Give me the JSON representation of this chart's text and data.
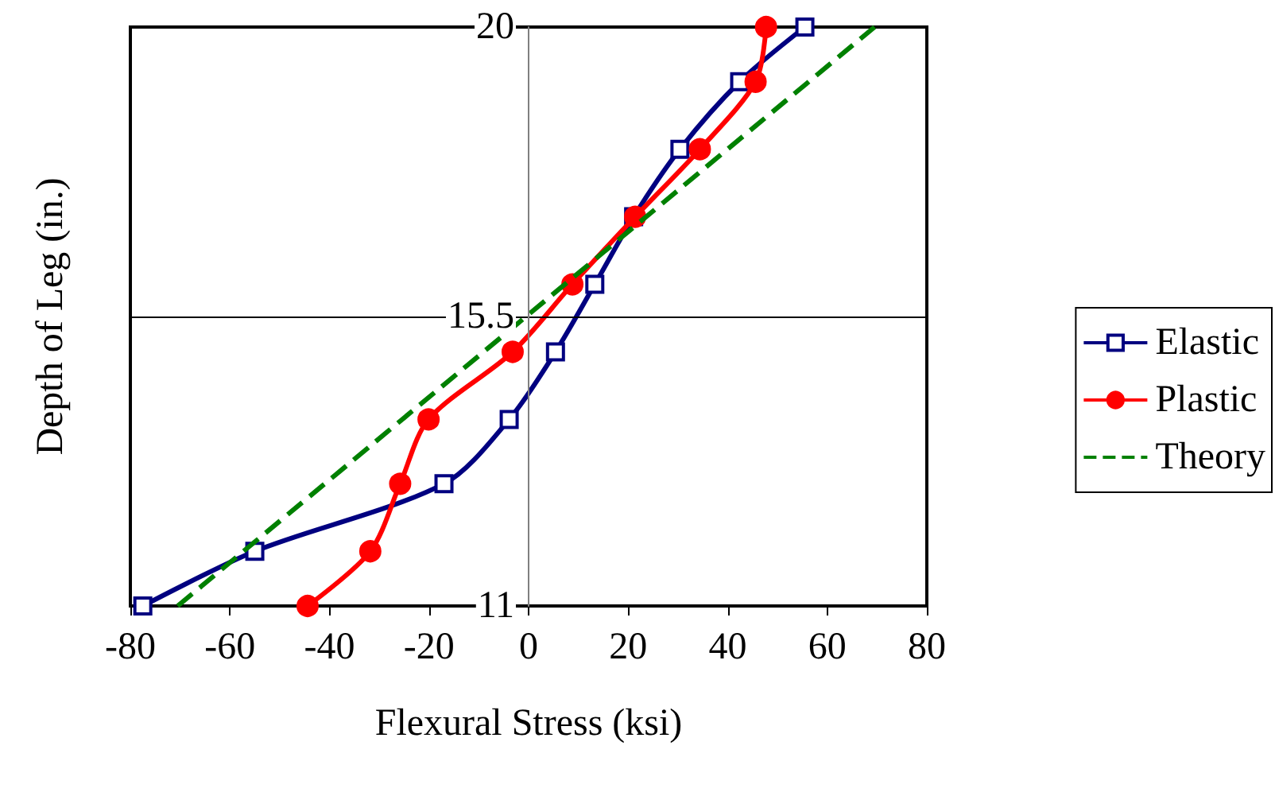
{
  "chart_data": {
    "type": "line",
    "xlabel": "Flexural Stress (ksi)",
    "ylabel": "Depth of Leg (in.)",
    "xlim": [
      -80,
      80
    ],
    "xticks": [
      -80,
      -60,
      -40,
      -20,
      0,
      20,
      40,
      60,
      80
    ],
    "ylim": [
      11,
      20
    ],
    "yticks": [
      11,
      15.5,
      20
    ],
    "legend": "right",
    "ref_lines": [
      {
        "axis": "y",
        "value": 15.5,
        "color": "#000000",
        "line_style": "solid"
      }
    ],
    "series": [
      {
        "name": "Elastic",
        "color": "#000080",
        "marker": "square",
        "line_style": "solid",
        "x": [
          -77.5,
          -55,
          -17,
          -3.9,
          5.4,
          13.3,
          21.1,
          30.4,
          42.4,
          55.5
        ],
        "values": [
          11,
          11.85,
          12.9,
          13.9,
          14.95,
          16,
          17.05,
          18.1,
          19.15,
          20
        ]
      },
      {
        "name": "Plastic",
        "color": "#ff0000",
        "marker": "circle",
        "line_style": "solid",
        "x": [
          -44.4,
          -31.8,
          -25.8,
          -20.1,
          -3.2,
          8.8,
          21.4,
          34.4,
          45.6,
          47.7
        ],
        "values": [
          11,
          11.85,
          12.9,
          13.9,
          14.95,
          16,
          17.05,
          18.1,
          19.15,
          20
        ]
      },
      {
        "name": "Theory",
        "color": "#008000",
        "marker": "none",
        "line_style": "dashed",
        "x": [
          -70.5,
          69.5
        ],
        "values": [
          11,
          20
        ]
      }
    ]
  }
}
